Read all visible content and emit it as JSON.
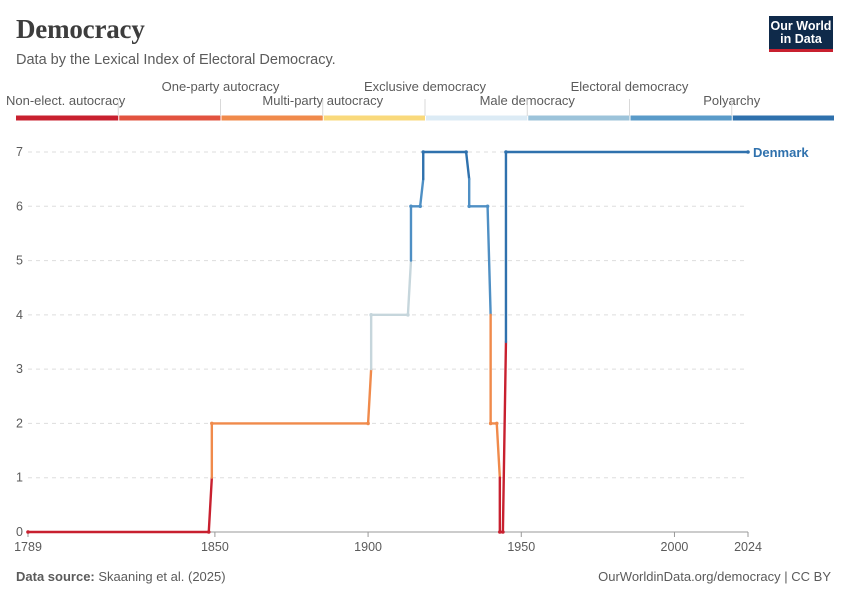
{
  "header": {
    "title": "Democracy",
    "subtitle": "Data by the Lexical Index of Electoral Democracy.",
    "logo_line1": "Our World",
    "logo_line2": "in Data"
  },
  "footer": {
    "source_label": "Data source:",
    "source_text": "Skaaning et al. (2025)",
    "url_text": "OurWorldinData.org/democracy | CC BY"
  },
  "legend": {
    "categories": [
      {
        "label": "Non-elect. autocracy",
        "color": "#c8202f"
      },
      {
        "label": "One-party autocracy",
        "color": "#e2533f"
      },
      {
        "label": "Multi-party autocracy",
        "color": "#f08a4b"
      },
      {
        "label": "Exclusive democracy",
        "color": "#f9d97b"
      },
      {
        "label": "Male democracy",
        "color": "#dcebf5"
      },
      {
        "label": "Electoral democracy",
        "color": "#9cc3da"
      },
      {
        "label": "Polyarchy",
        "color": "#5a9bc9"
      },
      {
        "label": "",
        "color": "#2f71ad"
      }
    ]
  },
  "chart_data": {
    "type": "line",
    "title": "Democracy",
    "x_ticks": [
      "1789",
      "1850",
      "1900",
      "1950",
      "2000",
      "2024"
    ],
    "y_ticks": [
      "0",
      "1",
      "2",
      "3",
      "4",
      "5",
      "6",
      "7"
    ],
    "xlim": [
      1789,
      2024
    ],
    "ylim": [
      0,
      7
    ],
    "grid": true,
    "series": [
      {
        "name": "Denmark",
        "color": "#2f71ad",
        "points": [
          [
            1789,
            0
          ],
          [
            1848,
            0
          ],
          [
            1849,
            2
          ],
          [
            1900,
            2
          ],
          [
            1901,
            4
          ],
          [
            1913,
            4
          ],
          [
            1914,
            6
          ],
          [
            1917,
            6
          ],
          [
            1918,
            7
          ],
          [
            1932,
            7
          ],
          [
            1933,
            6
          ],
          [
            1939,
            6
          ],
          [
            1940,
            2
          ],
          [
            1942,
            2
          ],
          [
            1943,
            0
          ],
          [
            1944,
            0
          ],
          [
            1945,
            7
          ],
          [
            2024,
            7
          ]
        ]
      }
    ]
  }
}
